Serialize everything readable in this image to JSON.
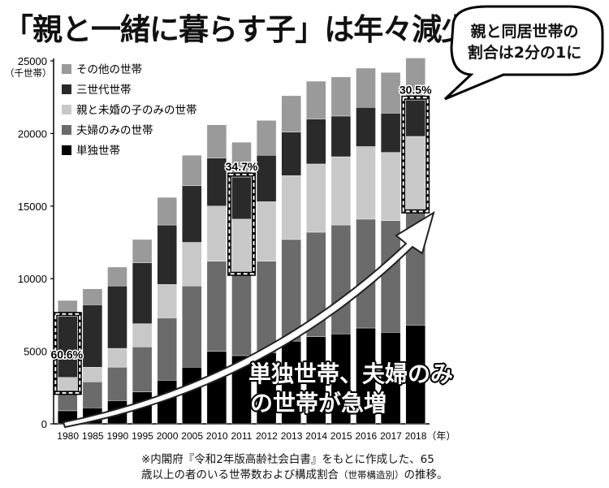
{
  "title": "「親と一緒に暮らす子」は年々減少！",
  "callout": {
    "line1": "親と同居世帯の",
    "line2": "割合は2分の1に"
  },
  "arrow_text": {
    "line1": "単独世帯、夫婦のみ",
    "line2": "の世帯が急増"
  },
  "source": {
    "line1": "※内閣府『令和2年版高齢社会白書』をもとに作成した、65",
    "line2a": "歳以上の者のいる世帯数および構成割合",
    "line2b": "（世帯構造別）",
    "line2c": "の推移。"
  },
  "chart_data": {
    "type": "bar",
    "stacked": true,
    "ylabel": "（千世帯）",
    "xlabel_suffix": "（年）",
    "ylim": [
      0,
      25000
    ],
    "yticks": [
      0,
      5000,
      10000,
      15000,
      20000,
      25000
    ],
    "grid": false,
    "legend_position": "top-left",
    "categories": [
      "1980",
      "1985",
      "1990",
      "1995",
      "2000",
      "2005",
      "2010",
      "2011",
      "2012",
      "2013",
      "2014",
      "2015",
      "2016",
      "2017",
      "2018"
    ],
    "series": [
      {
        "name": "単独世帯",
        "color": "#000000",
        "values": [
          900,
          1100,
          1600,
          2200,
          3000,
          3900,
          5000,
          4700,
          4900,
          5700,
          6000,
          6200,
          6600,
          6300,
          6800
        ]
      },
      {
        "name": "夫婦のみの世帯",
        "color": "#6b6b6b",
        "values": [
          1400,
          1800,
          2300,
          3100,
          4300,
          5600,
          6200,
          5800,
          6300,
          7000,
          7200,
          7500,
          7500,
          7700,
          8000
        ]
      },
      {
        "name": "親と未婚の子のみの世帯",
        "color": "#c8c8c8",
        "values": [
          900,
          1000,
          1300,
          1600,
          2300,
          3000,
          3800,
          3600,
          4100,
          4400,
          4700,
          4700,
          5000,
          4700,
          5000
        ]
      },
      {
        "name": "三世代世帯",
        "color": "#2a2a2a",
        "values": [
          4200,
          4300,
          4300,
          4200,
          4100,
          3900,
          3300,
          2900,
          3200,
          3000,
          3100,
          2800,
          2700,
          2700,
          2500
        ]
      },
      {
        "name": "その他の世帯",
        "color": "#9a9a9a",
        "values": [
          1100,
          1100,
          1300,
          1600,
          1900,
          2100,
          2300,
          2400,
          2400,
          2500,
          2600,
          2700,
          2700,
          2800,
          2900
        ]
      }
    ],
    "annotations": [
      {
        "category": "1980",
        "label": "60.6%"
      },
      {
        "category": "2011",
        "label": "34.7%"
      },
      {
        "category": "2018",
        "label": "30.5%"
      }
    ]
  }
}
